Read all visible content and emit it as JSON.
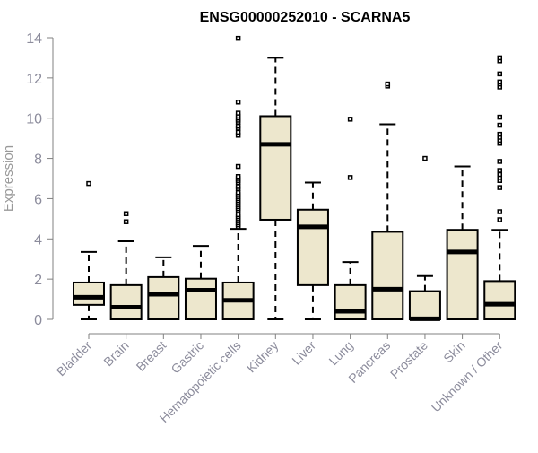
{
  "chart_data": {
    "type": "box",
    "title": "ENSG00000252010 - SCARNA5",
    "xlabel": "",
    "ylabel": "Expression",
    "ylim": [
      0,
      14
    ],
    "yticks": [
      0,
      2,
      4,
      6,
      8,
      10,
      12,
      14
    ],
    "grid": false,
    "colors": {
      "box_fill": "#ede7cd",
      "stroke": "#000000",
      "axis": "#808080",
      "tick_label": "#8c8c9c"
    },
    "categories": [
      "Bladder",
      "Brain",
      "Breast",
      "Gastric",
      "Hematopoietic cells",
      "Kidney",
      "Liver",
      "Lung",
      "Pancreas",
      "Prostate",
      "Skin",
      "Unknown / Other"
    ],
    "boxes": [
      {
        "min": 0,
        "q1": 0.72,
        "median": 1.1,
        "q3": 1.83,
        "max": 3.35,
        "outliers": [
          6.75
        ]
      },
      {
        "min": 0,
        "q1": 0,
        "median": 0.6,
        "q3": 1.7,
        "max": 3.88,
        "outliers": [
          4.85,
          5.25
        ]
      },
      {
        "min": 0,
        "q1": 0,
        "median": 1.25,
        "q3": 2.1,
        "max": 3.08,
        "outliers": []
      },
      {
        "min": 0,
        "q1": 0,
        "median": 1.45,
        "q3": 2.02,
        "max": 3.65,
        "outliers": []
      },
      {
        "min": 0,
        "q1": 0,
        "median": 0.95,
        "q3": 1.83,
        "max": 4.5,
        "outliers": [
          4.6,
          4.7,
          4.8,
          4.9,
          5.0,
          5.1,
          5.2,
          5.4,
          5.5,
          5.6,
          5.7,
          5.8,
          5.9,
          6.0,
          6.1,
          6.2,
          6.3,
          6.5,
          6.6,
          6.8,
          6.9,
          7.0,
          7.1,
          7.6,
          9.15,
          9.3,
          9.5,
          9.6,
          9.8,
          9.9,
          10.0,
          10.1,
          10.25,
          10.8,
          13.97
        ]
      },
      {
        "min": 0,
        "q1": 4.95,
        "median": 8.7,
        "q3": 10.1,
        "max": 13.0,
        "outliers": []
      },
      {
        "min": 0,
        "q1": 1.7,
        "median": 4.6,
        "q3": 5.45,
        "max": 6.8,
        "outliers": []
      },
      {
        "min": 0,
        "q1": 0,
        "median": 0.4,
        "q3": 1.7,
        "max": 2.85,
        "outliers": [
          7.05,
          9.95
        ]
      },
      {
        "min": 0,
        "q1": 0,
        "median": 1.5,
        "q3": 4.35,
        "max": 9.7,
        "outliers": [
          11.6,
          11.7
        ]
      },
      {
        "min": 0,
        "q1": 0,
        "median": 0.03,
        "q3": 1.4,
        "max": 2.15,
        "outliers": [
          8.0
        ]
      },
      {
        "min": 0,
        "q1": 0,
        "median": 3.35,
        "q3": 4.45,
        "max": 7.6,
        "outliers": []
      },
      {
        "min": 0,
        "q1": 0,
        "median": 0.75,
        "q3": 1.9,
        "max": 4.45,
        "outliers": [
          4.95,
          5.35,
          6.55,
          6.9,
          7.05,
          7.2,
          7.4,
          7.85,
          8.75,
          8.9,
          9.05,
          9.2,
          9.65,
          10.05,
          11.55,
          11.7,
          11.8,
          12.2,
          12.85,
          13.0
        ]
      }
    ]
  }
}
